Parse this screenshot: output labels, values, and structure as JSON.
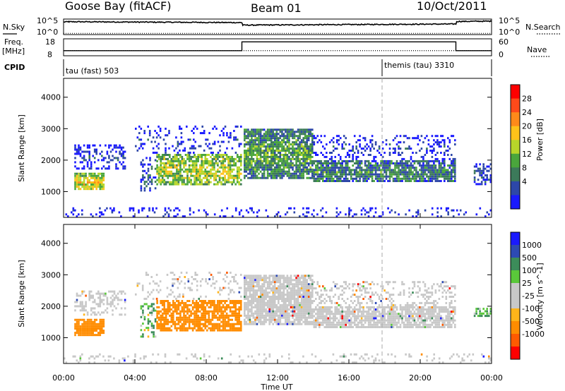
{
  "header": {
    "station": "Goose Bay (fitACF)",
    "beam": "Beam 01",
    "date": "10/Oct/2011"
  },
  "strip": {
    "nsky_label": "N.Sky",
    "nsearch_label": "N.Search",
    "noise_ticks_left": [
      "10^5",
      "10^0"
    ],
    "noise_ticks_right": [
      "10^5",
      "10^0"
    ],
    "freq_label": "Freq.",
    "freq_unit": "[MHz]",
    "freq_ticks": [
      "18",
      "8"
    ],
    "nave_label": "Nave",
    "nave_ticks": [
      "60",
      "0"
    ],
    "cpid_label": "CPID",
    "cpid_modes": [
      {
        "label": "tau (fast) 503",
        "start_hour": 0.0,
        "end_hour": 18.0
      },
      {
        "label": "themis (tau) 3310",
        "start_hour": 18.0,
        "end_hour": 24.0
      }
    ]
  },
  "colors": {
    "power": [
      "#1a1aff",
      "#2d47a8",
      "#3c7a5a",
      "#4aa63c",
      "#b8d62a",
      "#ffc21a",
      "#ff8a1a",
      "#ff4a1a",
      "#ff0000"
    ],
    "velocity": [
      "#ff0000",
      "#ff5a00",
      "#ff8c00",
      "#ffb41a",
      "#c8c8c8",
      "#c8c8c8",
      "#5ac83a",
      "#3c8c5a",
      "#2d4ab4",
      "#1a1aff"
    ],
    "vel_ground": "#c8c8c8"
  },
  "power_colorbar": {
    "label": "Power [dB]",
    "ticks": [
      "28",
      "24",
      "20",
      "16",
      "12",
      "8",
      "4"
    ]
  },
  "velocity_colorbar": {
    "label": "Velocity [m s^-1]",
    "ticks": [
      "1000",
      "500",
      "100",
      "25",
      "-25",
      "-100",
      "-500",
      "-1000"
    ]
  },
  "chart_data": [
    {
      "type": "line",
      "name": "noise",
      "x_range_hours": [
        0,
        24
      ],
      "series": [
        {
          "name": "N.Sky",
          "x": [
            0.0,
            0.3,
            10.0,
            10.05,
            22.0,
            22.05,
            24.0
          ],
          "y_log": [
            4.2,
            4.3,
            4.0,
            3.1,
            3.5,
            4.4,
            4.5
          ]
        },
        {
          "name": "N.Search",
          "x": [
            0.0,
            24.0
          ],
          "y_log": [
            0.3,
            0.3
          ]
        }
      ]
    },
    {
      "type": "line",
      "name": "frequency-nave",
      "x_range_hours": [
        0,
        24
      ],
      "series": [
        {
          "name": "Freq.",
          "x": [
            0.0,
            10.0,
            10.0,
            22.0,
            22.0,
            24.0
          ],
          "y": [
            10.8,
            10.8,
            16.5,
            16.5,
            10.8,
            10.8
          ]
        },
        {
          "name": "Nave",
          "x": [
            0.0,
            24.0
          ],
          "y": [
            17,
            17
          ]
        }
      ]
    },
    {
      "type": "heatmap",
      "name": "power",
      "xlabel": "",
      "ylabel": "Slant Range [km]",
      "x_range_hours": [
        0,
        24
      ],
      "ylim": [
        180,
        4600
      ],
      "yticks": [
        1000,
        2000,
        3000,
        4000
      ],
      "clim_db": [
        0,
        32
      ],
      "scatter_regions": [
        {
          "t0": 0.6,
          "t1": 2.3,
          "r0": 1050,
          "r1": 1600,
          "center": 18,
          "density": 0.85
        },
        {
          "t0": 0.6,
          "t1": 3.5,
          "r0": 1700,
          "r1": 2500,
          "center": 4,
          "density": 0.35
        },
        {
          "t0": 4.3,
          "t1": 5.2,
          "r0": 1000,
          "r1": 2100,
          "center": 6,
          "density": 0.35
        },
        {
          "t0": 5.2,
          "t1": 10.0,
          "r0": 1200,
          "r1": 2200,
          "center": 16,
          "density": 0.75
        },
        {
          "t0": 4.0,
          "t1": 10.0,
          "r0": 2200,
          "r1": 3100,
          "center": 4,
          "density": 0.18
        },
        {
          "t0": 10.1,
          "t1": 14.0,
          "r0": 1400,
          "r1": 3000,
          "center": 12,
          "density": 0.85
        },
        {
          "t0": 14.0,
          "t1": 22.0,
          "r0": 1300,
          "r1": 2000,
          "center": 10,
          "density": 0.8
        },
        {
          "t0": 14.0,
          "t1": 22.0,
          "r0": 2000,
          "r1": 2800,
          "center": 4,
          "density": 0.25
        },
        {
          "t0": 23.0,
          "t1": 24.0,
          "r0": 1200,
          "r1": 1900,
          "center": 6,
          "density": 0.5
        },
        {
          "t0": 0.0,
          "t1": 24.0,
          "r0": 180,
          "r1": 500,
          "center": 3,
          "density": 0.15
        }
      ]
    },
    {
      "type": "heatmap",
      "name": "velocity",
      "xlabel": "Time UT",
      "ylabel": "Slant Range [km]",
      "x_range_hours": [
        0,
        24
      ],
      "xticks": [
        "00:00",
        "04:00",
        "08:00",
        "12:00",
        "16:00",
        "20:00",
        "00:00"
      ],
      "ylim": [
        180,
        4600
      ],
      "yticks": [
        1000,
        2000,
        3000,
        4000
      ],
      "clim": [
        -1000,
        1000
      ],
      "scatter_regions": [
        {
          "t0": 0.6,
          "t1": 2.3,
          "r0": 1050,
          "r1": 1600,
          "vel": -300,
          "density": 0.85
        },
        {
          "t0": 0.6,
          "t1": 3.5,
          "r0": 1700,
          "r1": 2500,
          "vel": 0,
          "density": 0.35
        },
        {
          "t0": 4.3,
          "t1": 5.2,
          "r0": 1000,
          "r1": 2100,
          "vel": 100,
          "density": 0.35
        },
        {
          "t0": 5.2,
          "t1": 10.0,
          "r0": 1200,
          "r1": 2200,
          "vel": -250,
          "density": 0.75
        },
        {
          "t0": 4.0,
          "t1": 10.0,
          "r0": 2200,
          "r1": 3100,
          "vel": 0,
          "density": 0.18
        },
        {
          "t0": 10.1,
          "t1": 14.0,
          "r0": 1400,
          "r1": 3000,
          "vel": 0,
          "density": 0.85
        },
        {
          "t0": 14.0,
          "t1": 22.0,
          "r0": 1300,
          "r1": 2000,
          "vel": 0,
          "density": 0.8
        },
        {
          "t0": 14.0,
          "t1": 22.0,
          "r0": 2000,
          "r1": 2800,
          "vel": 0,
          "density": 0.25
        },
        {
          "t0": 23.0,
          "t1": 24.0,
          "r0": 1650,
          "r1": 1950,
          "vel": 150,
          "density": 0.7
        },
        {
          "t0": 0.0,
          "t1": 24.0,
          "r0": 180,
          "r1": 500,
          "vel": 0,
          "density": 0.15
        }
      ]
    }
  ]
}
